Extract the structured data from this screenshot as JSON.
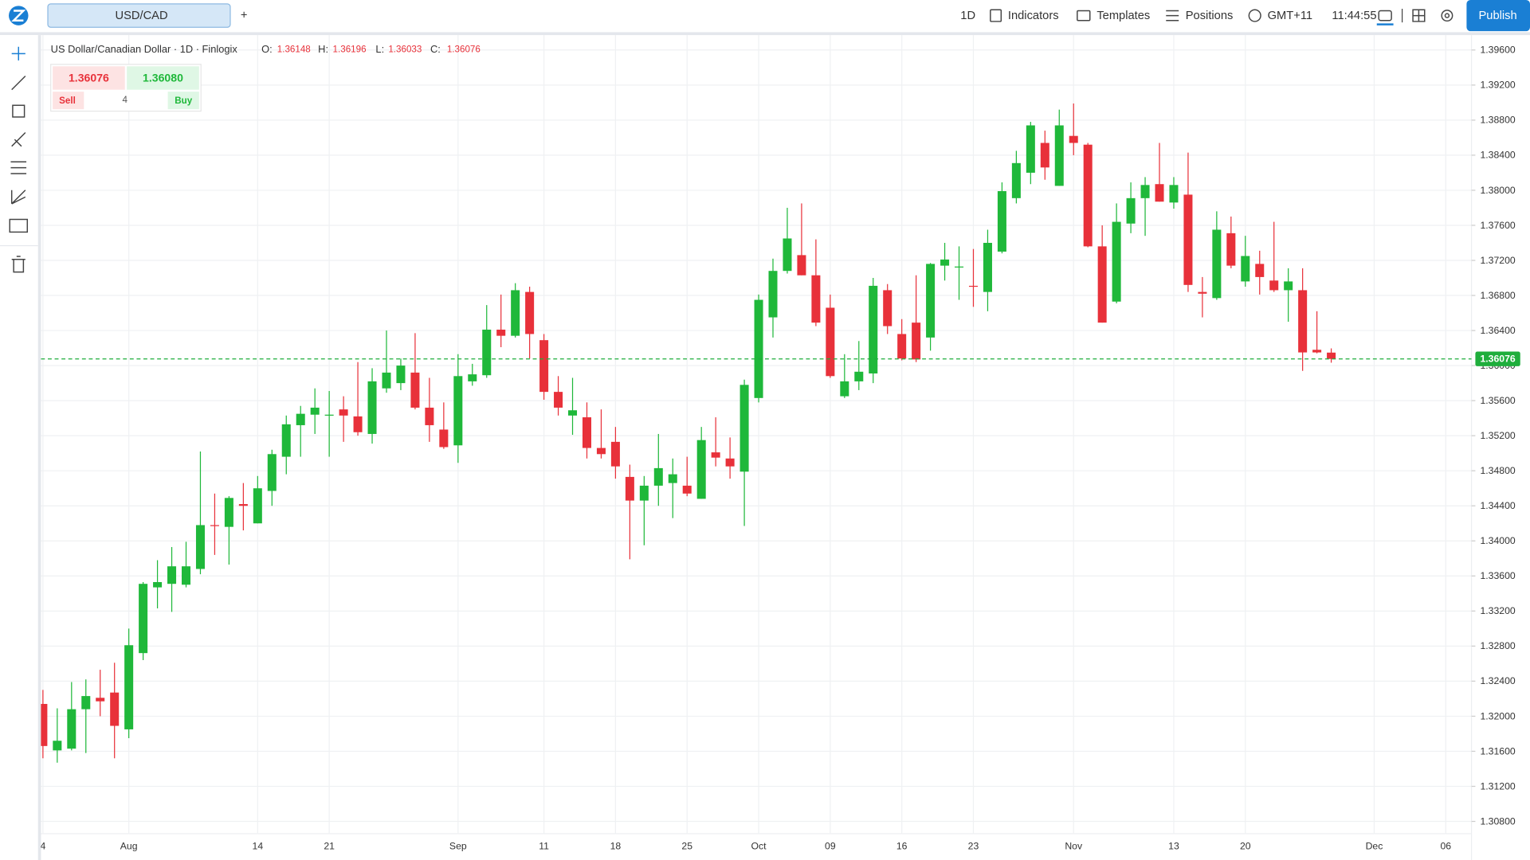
{
  "toolbar": {
    "symbol": "USD/CAD",
    "add": "+",
    "timeframe": "1D",
    "indicators": "Indicators",
    "templates": "Templates",
    "positions": "Positions",
    "timezone": "GMT+11",
    "time": "11:44:55",
    "publish": "Publish"
  },
  "legend": {
    "name": "US Dollar/Canadian Dollar · 1D · Finlogix",
    "o": "O:",
    "h": "H:",
    "l": "L:",
    "c": "C:"
  },
  "trade": {
    "sell_price": "1.36076",
    "buy_price": "1.36080",
    "sell": "Sell",
    "buy": "Buy",
    "quantity": "4"
  },
  "chart_data": {
    "type": "candlestick",
    "categories": [
      "4",
      null,
      null,
      null,
      null,
      null,
      "Aug",
      null,
      null,
      null,
      null,
      null,
      null,
      null,
      null,
      "14",
      null,
      null,
      null,
      null,
      "21",
      null,
      null,
      null,
      null,
      null,
      null,
      null,
      null,
      "Sep",
      null,
      null,
      null,
      null,
      null,
      "11",
      null,
      null,
      null,
      null,
      "18",
      null,
      null,
      null,
      null,
      "25",
      null,
      null,
      null,
      null,
      "Oct",
      null,
      null,
      null,
      null,
      "09",
      null,
      null,
      null,
      null,
      "16",
      null,
      null,
      null,
      null,
      "23",
      null,
      null,
      null,
      null,
      null,
      null,
      "Nov",
      null,
      null,
      null,
      null,
      null,
      null,
      "13",
      null,
      null,
      null,
      null,
      "20",
      null,
      null,
      null,
      null,
      null,
      null,
      null,
      null,
      "Dec",
      null,
      null,
      null,
      null,
      "06"
    ],
    "open": [
      1.3214,
      1.3161,
      1.3163,
      1.3208,
      1.3221,
      1.3227,
      1.3185,
      1.3272,
      1.3347,
      1.3351,
      1.335,
      1.3368,
      1.3418,
      1.3416,
      1.3442,
      1.342,
      1.3457,
      1.3496,
      1.3532,
      1.3544,
      1.3543,
      1.355,
      1.3542,
      1.3522,
      1.3574,
      1.358,
      1.3592,
      1.3552,
      1.3527,
      1.3509,
      1.3582,
      1.3589,
      1.3641,
      1.3634,
      1.3684,
      1.3629,
      1.357,
      1.3543,
      1.3541,
      1.3506,
      1.3513,
      1.3473,
      1.3446,
      1.3463,
      1.3466,
      1.3463,
      1.3448,
      1.3501,
      1.3494,
      1.3479,
      1.3563,
      1.3655,
      1.3708,
      1.3726,
      1.3703,
      1.3666,
      1.3565,
      1.3582,
      1.3591,
      1.3686,
      1.3636,
      1.3649,
      1.3632,
      1.3714,
      1.3712,
      1.3691,
      1.3684,
      1.373,
      1.3791,
      1.382,
      1.3854,
      1.3805,
      1.3862,
      1.3852,
      1.3736,
      1.3673,
      1.3762,
      1.3791,
      1.3807,
      1.3786,
      1.3795,
      1.3684,
      1.3677,
      1.3751,
      1.3696,
      1.3716,
      1.3697,
      1.3686,
      1.3686,
      1.3618,
      1.36148,
      null,
      null,
      null,
      null,
      null,
      null,
      null,
      null
    ],
    "high": [
      1.323,
      1.3209,
      1.3239,
      1.3242,
      1.3253,
      1.3261,
      1.33,
      1.3353,
      1.3378,
      1.3393,
      1.3399,
      1.3502,
      1.3454,
      1.3451,
      1.3466,
      1.3474,
      1.3504,
      1.3543,
      1.3554,
      1.3574,
      1.3571,
      1.3565,
      1.3604,
      1.3597,
      1.364,
      1.3608,
      1.3637,
      1.3586,
      1.3558,
      1.3613,
      1.3602,
      1.3669,
      1.3681,
      1.3694,
      1.369,
      1.3636,
      1.3588,
      1.3586,
      1.3558,
      1.355,
      1.353,
      1.3487,
      1.3474,
      1.3522,
      1.3494,
      1.3496,
      1.353,
      1.3541,
      1.3518,
      1.3584,
      1.3681,
      1.3722,
      1.378,
      1.3785,
      1.3744,
      1.3681,
      1.3613,
      1.3628,
      1.37,
      1.3693,
      1.3653,
      1.3703,
      1.3717,
      1.374,
      1.3736,
      1.3733,
      1.3755,
      1.3809,
      1.3845,
      1.3878,
      1.3868,
      1.3892,
      1.3899,
      1.3854,
      1.376,
      1.3785,
      1.3809,
      1.3815,
      1.3854,
      1.3815,
      1.3843,
      1.3701,
      1.3776,
      1.377,
      1.3748,
      1.3731,
      1.3764,
      1.3711,
      1.3711,
      1.3662,
      1.36196,
      null,
      null,
      null,
      null,
      null,
      null,
      null,
      null
    ],
    "low": [
      1.3152,
      1.3147,
      1.3161,
      1.3158,
      1.32,
      1.3152,
      1.3175,
      1.3264,
      1.3323,
      1.3319,
      1.3347,
      1.3362,
      1.3384,
      1.3373,
      1.3412,
      1.342,
      1.344,
      1.3476,
      1.3496,
      1.3522,
      1.3496,
      1.3513,
      1.352,
      1.3511,
      1.3569,
      1.3572,
      1.355,
      1.3513,
      1.3505,
      1.3489,
      1.3577,
      1.3586,
      1.3621,
      1.3632,
      1.3608,
      1.3561,
      1.3543,
      1.3521,
      1.3494,
      1.3494,
      1.3471,
      1.3379,
      1.3395,
      1.344,
      1.3426,
      1.3451,
      1.3448,
      1.3485,
      1.3471,
      1.3417,
      1.3558,
      1.3632,
      1.3705,
      1.3703,
      1.3645,
      1.3586,
      1.3563,
      1.3572,
      1.358,
      1.3636,
      1.3606,
      1.3604,
      1.3617,
      1.3697,
      1.3675,
      1.3667,
      1.3662,
      1.3728,
      1.3785,
      1.3807,
      1.3812,
      1.3805,
      1.384,
      1.3735,
      1.3649,
      1.3671,
      1.3751,
      1.3748,
      1.3787,
      1.3779,
      1.3684,
      1.3655,
      1.3675,
      1.3711,
      1.369,
      1.3681,
      1.3684,
      1.365,
      1.3594,
      1.3614,
      1.36033,
      null,
      null,
      null,
      null,
      null,
      null,
      null,
      null
    ],
    "close": [
      1.3166,
      1.3172,
      1.3208,
      1.3223,
      1.3217,
      1.3189,
      1.3281,
      1.3351,
      1.3353,
      1.3371,
      1.3371,
      1.3418,
      1.3417,
      1.3449,
      1.344,
      1.346,
      1.3499,
      1.3533,
      1.3545,
      1.3552,
      1.3544,
      1.3543,
      1.3524,
      1.3582,
      1.3592,
      1.36,
      1.3552,
      1.3532,
      1.3507,
      1.3588,
      1.359,
      1.3641,
      1.3634,
      1.3686,
      1.3636,
      1.357,
      1.3552,
      1.3549,
      1.3506,
      1.3499,
      1.3485,
      1.3446,
      1.3463,
      1.3483,
      1.3476,
      1.3454,
      1.3515,
      1.3495,
      1.3485,
      1.3578,
      1.3675,
      1.3708,
      1.3745,
      1.3703,
      1.3649,
      1.3588,
      1.3582,
      1.3593,
      1.3691,
      1.3645,
      1.3608,
      1.3607,
      1.3716,
      1.3721,
      1.3713,
      1.369,
      1.374,
      1.3799,
      1.3831,
      1.3874,
      1.3826,
      1.3874,
      1.3854,
      1.3736,
      1.3649,
      1.3764,
      1.3791,
      1.3806,
      1.3787,
      1.3806,
      1.3692,
      1.3682,
      1.3755,
      1.3714,
      1.3725,
      1.3701,
      1.3686,
      1.3696,
      1.3615,
      1.3615,
      1.36076,
      null,
      null,
      null,
      null,
      null,
      null,
      null,
      null
    ],
    "up_color": "#1fb83a",
    "down_color": "#e8313a",
    "price_line_color": "#1fae3c",
    "ylim": [
      1.3066,
      1.3977
    ],
    "yticks": [
      {
        "value": 1.308,
        "label": "1.30800"
      },
      {
        "value": 1.312,
        "label": "1.31200"
      },
      {
        "value": 1.316,
        "label": "1.31600"
      },
      {
        "value": 1.32,
        "label": "1.32000"
      },
      {
        "value": 1.324,
        "label": "1.32400"
      },
      {
        "value": 1.328,
        "label": "1.32800"
      },
      {
        "value": 1.332,
        "label": "1.33200"
      },
      {
        "value": 1.336,
        "label": "1.33600"
      },
      {
        "value": 1.34,
        "label": "1.34000"
      },
      {
        "value": 1.344,
        "label": "1.34400"
      },
      {
        "value": 1.348,
        "label": "1.34800"
      },
      {
        "value": 1.352,
        "label": "1.35200"
      },
      {
        "value": 1.356,
        "label": "1.35600"
      },
      {
        "value": 1.36,
        "label": "1.36000"
      },
      {
        "value": 1.364,
        "label": "1.36400"
      },
      {
        "value": 1.368,
        "label": "1.36800"
      },
      {
        "value": 1.372,
        "label": "1.37200"
      },
      {
        "value": 1.376,
        "label": "1.37600"
      },
      {
        "value": 1.38,
        "label": "1.38000"
      },
      {
        "value": 1.384,
        "label": "1.38400"
      },
      {
        "value": 1.388,
        "label": "1.38800"
      },
      {
        "value": 1.392,
        "label": "1.39200"
      },
      {
        "value": 1.396,
        "label": "1.39600"
      }
    ],
    "grid": true
  }
}
